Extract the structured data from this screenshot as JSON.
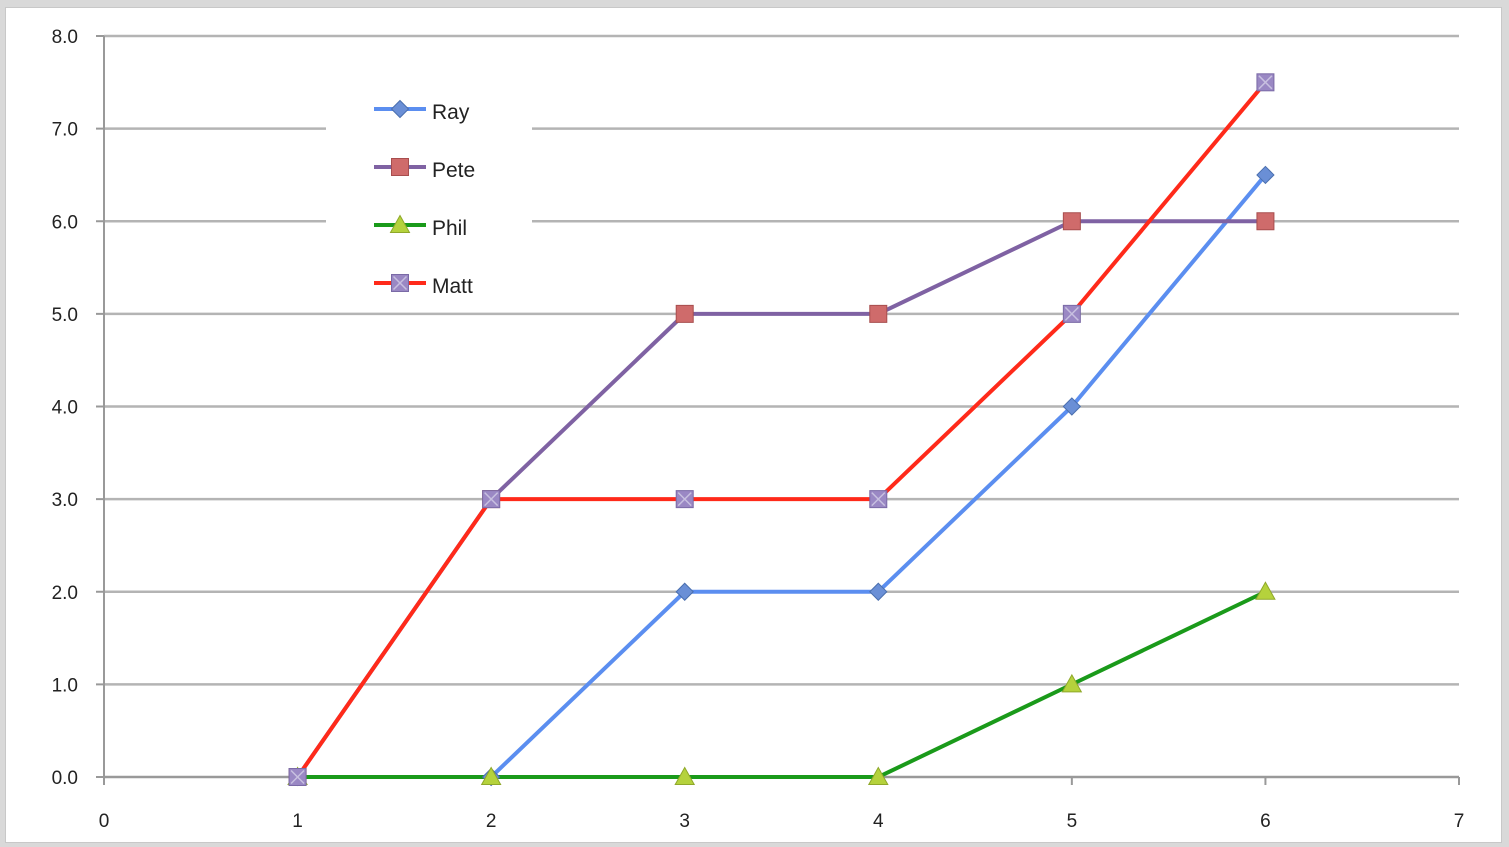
{
  "chart_data": {
    "type": "line",
    "title": "",
    "xlabel": "",
    "ylabel": "",
    "xlim": [
      0,
      7
    ],
    "ylim": [
      0,
      8
    ],
    "x_ticks": [
      0,
      1,
      2,
      3,
      4,
      5,
      6,
      7
    ],
    "x_tick_labels": [
      "0",
      "1",
      "2",
      "3",
      "4",
      "5",
      "6",
      "7"
    ],
    "y_ticks": [
      0,
      1,
      2,
      3,
      4,
      5,
      6,
      7,
      8
    ],
    "y_tick_labels": [
      "0.0",
      "1.0",
      "2.0",
      "3.0",
      "4.0",
      "5.0",
      "6.0",
      "7.0",
      "8.0"
    ],
    "grid": "horizontal",
    "legend_position": "top-left",
    "x": [
      1,
      2,
      3,
      4,
      5,
      6
    ],
    "series": [
      {
        "name": "Ray",
        "values": [
          0,
          0,
          2,
          2,
          4,
          6.5
        ],
        "line_color": "#5b8ef0",
        "marker": "diamond",
        "marker_color": "#6a8fd6"
      },
      {
        "name": "Pete",
        "values": [
          0,
          3,
          5,
          5,
          6,
          6
        ],
        "line_color": "#7f62a3",
        "marker": "square",
        "marker_color": "#cf6b6b"
      },
      {
        "name": "Phil",
        "values": [
          0,
          0,
          0,
          0,
          1,
          2
        ],
        "line_color": "#1a9a1a",
        "marker": "triangle",
        "marker_color": "#b5d23c"
      },
      {
        "name": "Matt",
        "values": [
          0,
          3,
          3,
          3,
          5,
          7.5
        ],
        "line_color": "#ff2a1a",
        "marker": "square-x",
        "marker_color": "#9a88c4"
      }
    ]
  }
}
